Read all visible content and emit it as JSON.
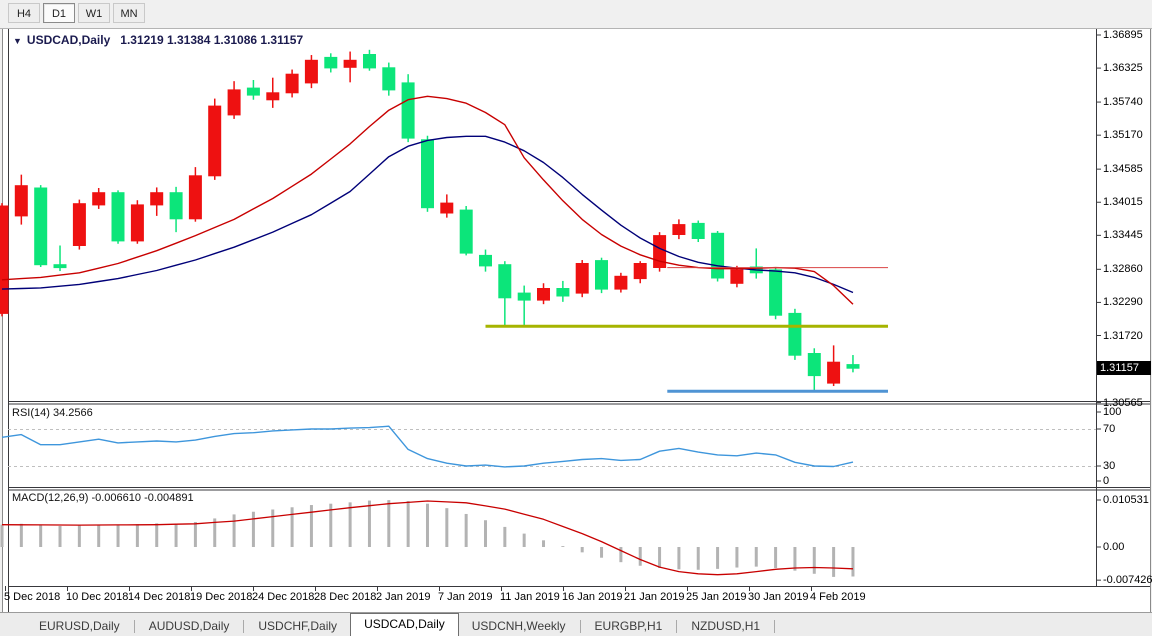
{
  "toolbar": {
    "buttons": [
      {
        "label": "H4",
        "active": false
      },
      {
        "label": "D1",
        "active": true
      },
      {
        "label": "W1",
        "active": false
      },
      {
        "label": "MN",
        "active": false
      }
    ]
  },
  "chart": {
    "title_symbol": "USDCAD,Daily",
    "title_quote": "1.31219 1.31384 1.31086 1.31157",
    "dropdown_icon": "triangle-down",
    "current_price": "1.31157",
    "price_axis_labels": [
      "1.36895",
      "1.36325",
      "1.35740",
      "1.35170",
      "1.34585",
      "1.34015",
      "1.33445",
      "1.32860",
      "1.32290",
      "1.31720",
      "1.30565"
    ],
    "date_axis_labels": [
      "5 Dec 2018",
      "10 Dec 2018",
      "14 Dec 2018",
      "19 Dec 2018",
      "24 Dec 2018",
      "28 Dec 2018",
      "2 Jan 2019",
      "7 Jan 2019",
      "11 Jan 2019",
      "16 Jan 2019",
      "21 Jan 2019",
      "25 Jan 2019",
      "30 Jan 2019",
      "4 Feb 2019"
    ]
  },
  "rsi": {
    "label": "RSI(14) 34.2566",
    "axis_labels": [
      "100",
      "70",
      "30",
      "0"
    ]
  },
  "macd": {
    "label": "MACD(12,26,9) -0.006610 -0.004891",
    "axis_labels": [
      "0.010531",
      "0.00",
      "-0.007426"
    ]
  },
  "tabs": {
    "items": [
      {
        "label": "EURUSD,Daily",
        "active": false
      },
      {
        "label": "AUDUSD,Daily",
        "active": false
      },
      {
        "label": "USDCHF,Daily",
        "active": false
      },
      {
        "label": "USDCAD,Daily",
        "active": true
      },
      {
        "label": "USDCNH,Weekly",
        "active": false
      },
      {
        "label": "EURGBP,H1",
        "active": false
      },
      {
        "label": "NZDUSD,H1",
        "active": false
      }
    ]
  },
  "colors": {
    "bull_candle": "#ee1111",
    "bear_candle": "#0ce57a",
    "ma_fast": "#c80000",
    "ma_slow": "#000078",
    "rsi_line": "#3e96dc",
    "rsi_level_dash": "#bfbfbf",
    "macd_histogram": "#b3b3b3",
    "macd_signal": "#c80000",
    "badge_bg": "#000000",
    "badge_text": "#ffffff",
    "hline_red": "#d94343",
    "hline_olive": "#a6b400",
    "hline_blue": "#4f94d4",
    "pane_border": "#38383c"
  },
  "chart_data": {
    "type": "candlestick-with-indicators",
    "symbol": "USDCAD",
    "timeframe": "Daily",
    "current_ohlc": {
      "open": 1.31219,
      "high": 1.31384,
      "low": 1.31086,
      "close": 1.31157
    },
    "y_axis_ticks": [
      1.36895,
      1.36325,
      1.3574,
      1.3517,
      1.34585,
      1.34015,
      1.33445,
      1.3286,
      1.3229,
      1.3172,
      1.30565
    ],
    "x_axis_dates": [
      "5 Dec 2018",
      "10 Dec 2018",
      "14 Dec 2018",
      "19 Dec 2018",
      "24 Dec 2018",
      "28 Dec 2018",
      "2 Jan 2019",
      "7 Jan 2019",
      "11 Jan 2019",
      "16 Jan 2019",
      "21 Jan 2019",
      "25 Jan 2019",
      "30 Jan 2019",
      "4 Feb 2019"
    ],
    "candles_ohlc": [
      [
        1.321,
        1.34,
        1.3205,
        1.3395
      ],
      [
        1.3378,
        1.3449,
        1.3363,
        1.343
      ],
      [
        1.3426,
        1.3431,
        1.329,
        1.3294
      ],
      [
        1.3294,
        1.3327,
        1.3283,
        1.3289
      ],
      [
        1.3327,
        1.3406,
        1.332,
        1.3399
      ],
      [
        1.3397,
        1.3426,
        1.339,
        1.3418
      ],
      [
        1.3418,
        1.3422,
        1.333,
        1.3335
      ],
      [
        1.3335,
        1.3405,
        1.333,
        1.3397
      ],
      [
        1.3397,
        1.3427,
        1.3378,
        1.3418
      ],
      [
        1.3418,
        1.3428,
        1.335,
        1.3373
      ],
      [
        1.3373,
        1.3462,
        1.3368,
        1.3447
      ],
      [
        1.3447,
        1.358,
        1.344,
        1.3567
      ],
      [
        1.3552,
        1.361,
        1.3545,
        1.3595
      ],
      [
        1.3598,
        1.3612,
        1.3578,
        1.3586
      ],
      [
        1.3578,
        1.3616,
        1.3564,
        1.359
      ],
      [
        1.359,
        1.363,
        1.3582,
        1.3622
      ],
      [
        1.3607,
        1.3655,
        1.3598,
        1.3646
      ],
      [
        1.3651,
        1.3658,
        1.3625,
        1.3633
      ],
      [
        1.3634,
        1.3661,
        1.3608,
        1.3646
      ],
      [
        1.3656,
        1.3664,
        1.3628,
        1.3633
      ],
      [
        1.3633,
        1.3642,
        1.3585,
        1.3595
      ],
      [
        1.3607,
        1.3622,
        1.3505,
        1.3512
      ],
      [
        1.3509,
        1.3516,
        1.3385,
        1.3392
      ],
      [
        1.3383,
        1.3415,
        1.3375,
        1.34
      ],
      [
        1.3388,
        1.3395,
        1.331,
        1.3314
      ],
      [
        1.331,
        1.332,
        1.3282,
        1.3292
      ],
      [
        1.3294,
        1.33,
        1.3188,
        1.3237
      ],
      [
        1.3245,
        1.3258,
        1.319,
        1.3233
      ],
      [
        1.3233,
        1.3262,
        1.3226,
        1.3253
      ],
      [
        1.3253,
        1.3266,
        1.323,
        1.324
      ],
      [
        1.3245,
        1.3302,
        1.3238,
        1.3296
      ],
      [
        1.3301,
        1.3306,
        1.3245,
        1.3252
      ],
      [
        1.3252,
        1.328,
        1.3246,
        1.3274
      ],
      [
        1.327,
        1.33,
        1.3262,
        1.3296
      ],
      [
        1.3289,
        1.335,
        1.3282,
        1.3344
      ],
      [
        1.3346,
        1.3372,
        1.3338,
        1.3363
      ],
      [
        1.3365,
        1.337,
        1.3333,
        1.3339
      ],
      [
        1.3348,
        1.3352,
        1.3265,
        1.3271
      ],
      [
        1.3262,
        1.3292,
        1.3255,
        1.3285
      ],
      [
        1.329,
        1.3322,
        1.327,
        1.328
      ],
      [
        1.3285,
        1.329,
        1.32,
        1.3207
      ],
      [
        1.321,
        1.3218,
        1.313,
        1.3138
      ],
      [
        1.3141,
        1.315,
        1.3076,
        1.3103
      ],
      [
        1.309,
        1.3155,
        1.3085,
        1.3126
      ],
      [
        1.31219,
        1.31384,
        1.31086,
        1.31157
      ]
    ],
    "candle_color_rule": "close>=open is red (bull), close<open is green (bear)",
    "ma_fast_points": [
      [
        0,
        1.3268
      ],
      [
        2,
        1.3272
      ],
      [
        4,
        1.328
      ],
      [
        6,
        1.3296
      ],
      [
        8,
        1.3318
      ],
      [
        10,
        1.3344
      ],
      [
        12,
        1.3372
      ],
      [
        14,
        1.3408
      ],
      [
        16,
        1.345
      ],
      [
        18,
        1.3502
      ],
      [
        19,
        1.3532
      ],
      [
        20,
        1.356
      ],
      [
        21,
        1.3578
      ],
      [
        22,
        1.3584
      ],
      [
        23,
        1.358
      ],
      [
        24,
        1.3572
      ],
      [
        25,
        1.3556
      ],
      [
        26,
        1.3535
      ],
      [
        27,
        1.3478
      ],
      [
        28,
        1.344
      ],
      [
        29,
        1.3404
      ],
      [
        30,
        1.3372
      ],
      [
        31,
        1.3346
      ],
      [
        32,
        1.3326
      ],
      [
        33,
        1.3311
      ],
      [
        34,
        1.33
      ],
      [
        35,
        1.3293
      ],
      [
        36,
        1.3289
      ],
      [
        37,
        1.3287
      ],
      [
        38,
        1.3287
      ],
      [
        39,
        1.3288
      ],
      [
        40,
        1.3289
      ],
      [
        41,
        1.3288
      ],
      [
        42,
        1.3282
      ],
      [
        43,
        1.3258
      ],
      [
        44,
        1.3226
      ]
    ],
    "ma_slow_points": [
      [
        0,
        1.3252
      ],
      [
        2,
        1.3254
      ],
      [
        4,
        1.326
      ],
      [
        6,
        1.327
      ],
      [
        8,
        1.3284
      ],
      [
        10,
        1.3302
      ],
      [
        12,
        1.3324
      ],
      [
        14,
        1.335
      ],
      [
        16,
        1.338
      ],
      [
        18,
        1.342
      ],
      [
        20,
        1.348
      ],
      [
        21,
        1.3498
      ],
      [
        22,
        1.3508
      ],
      [
        23,
        1.3513
      ],
      [
        24,
        1.3515
      ],
      [
        25,
        1.3515
      ],
      [
        26,
        1.3505
      ],
      [
        27,
        1.349
      ],
      [
        28,
        1.347
      ],
      [
        29,
        1.3444
      ],
      [
        30,
        1.3415
      ],
      [
        31,
        1.3388
      ],
      [
        32,
        1.3362
      ],
      [
        33,
        1.334
      ],
      [
        34,
        1.3322
      ],
      [
        35,
        1.3308
      ],
      [
        36,
        1.3298
      ],
      [
        37,
        1.3292
      ],
      [
        38,
        1.3288
      ],
      [
        39,
        1.3285
      ],
      [
        40,
        1.3283
      ],
      [
        41,
        1.328
      ],
      [
        42,
        1.3272
      ],
      [
        43,
        1.326
      ],
      [
        44,
        1.3246
      ]
    ],
    "horizontal_lines": [
      {
        "id": "resistance-red",
        "price": 1.3289,
        "start_bar": 34.4,
        "thickness": 1,
        "color_key": "hline_red"
      },
      {
        "id": "support-olive",
        "price": 1.3188,
        "start_bar": 25.0,
        "thickness": 3,
        "color_key": "hline_olive"
      },
      {
        "id": "support-blue",
        "price": 1.3076,
        "start_bar": 34.4,
        "thickness": 3,
        "color_key": "hline_blue"
      }
    ],
    "rsi": {
      "period": 14,
      "current": 34.2566,
      "levels": [
        70,
        30
      ],
      "scale_labels": [
        100,
        70,
        30,
        0
      ],
      "points": [
        [
          0,
          61
        ],
        [
          1,
          64
        ],
        [
          2,
          53
        ],
        [
          3,
          53
        ],
        [
          4,
          56
        ],
        [
          5,
          59
        ],
        [
          6,
          55
        ],
        [
          7,
          56
        ],
        [
          8,
          57
        ],
        [
          9,
          56
        ],
        [
          10,
          58
        ],
        [
          11,
          62
        ],
        [
          12,
          65
        ],
        [
          13,
          66
        ],
        [
          14,
          68
        ],
        [
          15,
          69
        ],
        [
          16,
          70
        ],
        [
          17,
          70
        ],
        [
          18,
          71
        ],
        [
          19,
          71.5
        ],
        [
          20,
          73
        ],
        [
          21,
          48
        ],
        [
          22,
          38
        ],
        [
          23,
          33
        ],
        [
          24,
          30
        ],
        [
          25,
          31
        ],
        [
          26,
          29
        ],
        [
          27,
          30
        ],
        [
          28,
          33
        ],
        [
          29,
          35
        ],
        [
          30,
          37
        ],
        [
          31,
          38
        ],
        [
          32,
          36
        ],
        [
          33,
          37
        ],
        [
          34,
          46
        ],
        [
          35,
          49
        ],
        [
          36,
          45
        ],
        [
          37,
          42
        ],
        [
          38,
          41
        ],
        [
          39,
          44
        ],
        [
          40,
          42
        ],
        [
          41,
          34
        ],
        [
          42,
          30
        ],
        [
          43,
          29.5
        ],
        [
          44,
          34.2566
        ]
      ]
    },
    "macd": {
      "parameters": "12,26,9",
      "macd_current": -0.00661,
      "signal_current": -0.004891,
      "scale_labels": [
        0.010531,
        0.0,
        -0.007426
      ],
      "histogram": [
        0.005,
        0.0052,
        0.0049,
        0.0047,
        0.0048,
        0.005,
        0.0049,
        0.0051,
        0.0053,
        0.0052,
        0.0056,
        0.0064,
        0.0073,
        0.0079,
        0.0084,
        0.0089,
        0.0094,
        0.0097,
        0.01,
        0.0104,
        0.0105,
        0.0103,
        0.0097,
        0.0087,
        0.0074,
        0.006,
        0.0045,
        0.003,
        0.0015,
        0.0002,
        -0.0012,
        -0.0024,
        -0.0034,
        -0.0042,
        -0.0047,
        -0.005,
        -0.0051,
        -0.0049,
        -0.0046,
        -0.0044,
        -0.0047,
        -0.0053,
        -0.006,
        -0.0067,
        -0.00661
      ],
      "signal_points": [
        [
          0,
          0.005
        ],
        [
          4,
          0.0049
        ],
        [
          8,
          0.005
        ],
        [
          10,
          0.0052
        ],
        [
          12,
          0.0058
        ],
        [
          14,
          0.0068
        ],
        [
          16,
          0.0078
        ],
        [
          18,
          0.0088
        ],
        [
          20,
          0.0097
        ],
        [
          22,
          0.0103
        ],
        [
          24,
          0.0099
        ],
        [
          26,
          0.0085
        ],
        [
          28,
          0.0062
        ],
        [
          30,
          0.003
        ],
        [
          31,
          0.0012
        ],
        [
          32,
          -0.0008
        ],
        [
          33,
          -0.0028
        ],
        [
          34,
          -0.0045
        ],
        [
          35,
          -0.0055
        ],
        [
          36,
          -0.006
        ],
        [
          37,
          -0.0062
        ],
        [
          38,
          -0.006
        ],
        [
          39,
          -0.0055
        ],
        [
          40,
          -0.005
        ],
        [
          41,
          -0.0047
        ],
        [
          42,
          -0.0046
        ],
        [
          43,
          -0.0047
        ],
        [
          44,
          -0.004891
        ]
      ]
    }
  }
}
